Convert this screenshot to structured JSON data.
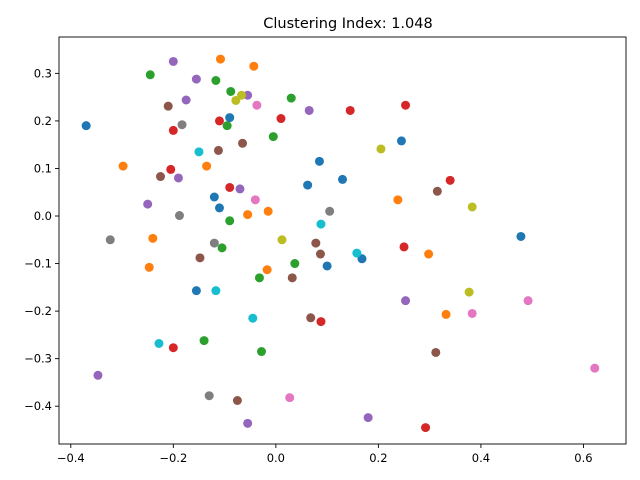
{
  "chart_data": {
    "type": "scatter",
    "title": "Clustering Index: 1.048",
    "xlabel": "",
    "ylabel": "",
    "xlim": [
      -0.423,
      0.683
    ],
    "ylim": [
      -0.4795,
      0.3765
    ],
    "xticks": [
      -0.4,
      -0.2,
      0.0,
      0.2,
      0.4,
      0.6
    ],
    "xtick_labels": [
      "−0.4",
      "−0.2",
      "0.0",
      "0.2",
      "0.4",
      "0.6"
    ],
    "yticks": [
      -0.4,
      -0.3,
      -0.2,
      -0.1,
      0.0,
      0.1,
      0.2,
      0.3
    ],
    "ytick_labels": [
      "−0.4",
      "−0.3",
      "−0.2",
      "−0.1",
      "0.0",
      "0.1",
      "0.2",
      "0.3"
    ],
    "grid": false,
    "legend": "none",
    "colors": {
      "blue": "#1f77b4",
      "orange": "#ff7f0e",
      "green": "#2ca02c",
      "red": "#d62728",
      "purple": "#9467bd",
      "brown": "#8c564b",
      "pink": "#e377c2",
      "gray": "#7f7f7f",
      "olive": "#bcbd22",
      "cyan": "#17becf"
    },
    "points": [
      {
        "x": -0.37,
        "y": 0.19,
        "c": "blue"
      },
      {
        "x": -0.11,
        "y": 0.017,
        "c": "blue"
      },
      {
        "x": -0.09,
        "y": 0.207,
        "c": "blue"
      },
      {
        "x": -0.12,
        "y": 0.04,
        "c": "blue"
      },
      {
        "x": 0.062,
        "y": 0.065,
        "c": "blue"
      },
      {
        "x": 0.085,
        "y": 0.115,
        "c": "blue"
      },
      {
        "x": 0.13,
        "y": 0.077,
        "c": "blue"
      },
      {
        "x": 0.245,
        "y": 0.158,
        "c": "blue"
      },
      {
        "x": 0.168,
        "y": -0.09,
        "c": "blue"
      },
      {
        "x": 0.1,
        "y": -0.105,
        "c": "blue"
      },
      {
        "x": -0.155,
        "y": -0.157,
        "c": "blue"
      },
      {
        "x": 0.478,
        "y": -0.043,
        "c": "blue"
      },
      {
        "x": -0.108,
        "y": 0.33,
        "c": "orange"
      },
      {
        "x": -0.043,
        "y": 0.315,
        "c": "orange"
      },
      {
        "x": -0.298,
        "y": 0.105,
        "c": "orange"
      },
      {
        "x": -0.135,
        "y": 0.105,
        "c": "orange"
      },
      {
        "x": -0.055,
        "y": 0.003,
        "c": "orange"
      },
      {
        "x": -0.015,
        "y": 0.01,
        "c": "orange"
      },
      {
        "x": 0.238,
        "y": 0.034,
        "c": "orange"
      },
      {
        "x": -0.24,
        "y": -0.047,
        "c": "orange"
      },
      {
        "x": -0.247,
        "y": -0.108,
        "c": "orange"
      },
      {
        "x": -0.017,
        "y": -0.113,
        "c": "orange"
      },
      {
        "x": 0.298,
        "y": -0.08,
        "c": "orange"
      },
      {
        "x": 0.332,
        "y": -0.207,
        "c": "orange"
      },
      {
        "x": -0.245,
        "y": 0.297,
        "c": "green"
      },
      {
        "x": -0.117,
        "y": 0.285,
        "c": "green"
      },
      {
        "x": -0.088,
        "y": 0.262,
        "c": "green"
      },
      {
        "x": 0.03,
        "y": 0.248,
        "c": "green"
      },
      {
        "x": -0.095,
        "y": 0.19,
        "c": "green"
      },
      {
        "x": -0.005,
        "y": 0.167,
        "c": "green"
      },
      {
        "x": -0.09,
        "y": -0.01,
        "c": "green"
      },
      {
        "x": -0.105,
        "y": -0.067,
        "c": "green"
      },
      {
        "x": 0.037,
        "y": -0.1,
        "c": "green"
      },
      {
        "x": -0.032,
        "y": -0.13,
        "c": "green"
      },
      {
        "x": -0.14,
        "y": -0.262,
        "c": "green"
      },
      {
        "x": -0.028,
        "y": -0.285,
        "c": "green"
      },
      {
        "x": -0.2,
        "y": 0.18,
        "c": "red"
      },
      {
        "x": -0.11,
        "y": 0.2,
        "c": "red"
      },
      {
        "x": 0.01,
        "y": 0.205,
        "c": "red"
      },
      {
        "x": 0.145,
        "y": 0.222,
        "c": "red"
      },
      {
        "x": 0.253,
        "y": 0.233,
        "c": "red"
      },
      {
        "x": -0.205,
        "y": 0.098,
        "c": "red"
      },
      {
        "x": -0.09,
        "y": 0.06,
        "c": "red"
      },
      {
        "x": 0.34,
        "y": 0.075,
        "c": "red"
      },
      {
        "x": 0.25,
        "y": -0.065,
        "c": "red"
      },
      {
        "x": 0.088,
        "y": -0.222,
        "c": "red"
      },
      {
        "x": -0.2,
        "y": -0.277,
        "c": "red"
      },
      {
        "x": 0.292,
        "y": -0.445,
        "c": "red"
      },
      {
        "x": -0.2,
        "y": 0.325,
        "c": "purple"
      },
      {
        "x": -0.155,
        "y": 0.288,
        "c": "purple"
      },
      {
        "x": -0.175,
        "y": 0.244,
        "c": "purple"
      },
      {
        "x": -0.055,
        "y": 0.254,
        "c": "purple"
      },
      {
        "x": 0.065,
        "y": 0.222,
        "c": "purple"
      },
      {
        "x": -0.19,
        "y": 0.08,
        "c": "purple"
      },
      {
        "x": -0.07,
        "y": 0.057,
        "c": "purple"
      },
      {
        "x": -0.25,
        "y": 0.025,
        "c": "purple"
      },
      {
        "x": 0.253,
        "y": -0.178,
        "c": "purple"
      },
      {
        "x": -0.347,
        "y": -0.335,
        "c": "purple"
      },
      {
        "x": 0.18,
        "y": -0.424,
        "c": "purple"
      },
      {
        "x": -0.055,
        "y": -0.436,
        "c": "purple"
      },
      {
        "x": -0.21,
        "y": 0.231,
        "c": "brown"
      },
      {
        "x": -0.065,
        "y": 0.153,
        "c": "brown"
      },
      {
        "x": -0.112,
        "y": 0.138,
        "c": "brown"
      },
      {
        "x": -0.225,
        "y": 0.083,
        "c": "brown"
      },
      {
        "x": 0.315,
        "y": 0.052,
        "c": "brown"
      },
      {
        "x": 0.078,
        "y": -0.057,
        "c": "brown"
      },
      {
        "x": 0.087,
        "y": -0.08,
        "c": "brown"
      },
      {
        "x": -0.148,
        "y": -0.088,
        "c": "brown"
      },
      {
        "x": 0.032,
        "y": -0.13,
        "c": "brown"
      },
      {
        "x": 0.068,
        "y": -0.214,
        "c": "brown"
      },
      {
        "x": 0.312,
        "y": -0.287,
        "c": "brown"
      },
      {
        "x": -0.075,
        "y": -0.388,
        "c": "brown"
      },
      {
        "x": -0.037,
        "y": 0.233,
        "c": "pink"
      },
      {
        "x": -0.04,
        "y": 0.034,
        "c": "pink"
      },
      {
        "x": 0.492,
        "y": -0.178,
        "c": "pink"
      },
      {
        "x": 0.383,
        "y": -0.205,
        "c": "pink"
      },
      {
        "x": 0.622,
        "y": -0.32,
        "c": "pink"
      },
      {
        "x": 0.027,
        "y": -0.382,
        "c": "pink"
      },
      {
        "x": -0.183,
        "y": 0.192,
        "c": "gray"
      },
      {
        "x": -0.188,
        "y": 0.001,
        "c": "gray"
      },
      {
        "x": 0.105,
        "y": 0.01,
        "c": "gray"
      },
      {
        "x": -0.323,
        "y": -0.05,
        "c": "gray"
      },
      {
        "x": -0.12,
        "y": -0.057,
        "c": "gray"
      },
      {
        "x": -0.13,
        "y": -0.378,
        "c": "gray"
      },
      {
        "x": -0.078,
        "y": 0.243,
        "c": "olive"
      },
      {
        "x": -0.067,
        "y": 0.254,
        "c": "olive"
      },
      {
        "x": 0.205,
        "y": 0.141,
        "c": "olive"
      },
      {
        "x": 0.383,
        "y": 0.019,
        "c": "olive"
      },
      {
        "x": 0.012,
        "y": -0.05,
        "c": "olive"
      },
      {
        "x": 0.377,
        "y": -0.16,
        "c": "olive"
      },
      {
        "x": -0.15,
        "y": 0.135,
        "c": "cyan"
      },
      {
        "x": 0.088,
        "y": -0.017,
        "c": "cyan"
      },
      {
        "x": 0.158,
        "y": -0.078,
        "c": "cyan"
      },
      {
        "x": -0.117,
        "y": -0.157,
        "c": "cyan"
      },
      {
        "x": -0.045,
        "y": -0.215,
        "c": "cyan"
      },
      {
        "x": -0.228,
        "y": -0.268,
        "c": "cyan"
      }
    ]
  }
}
